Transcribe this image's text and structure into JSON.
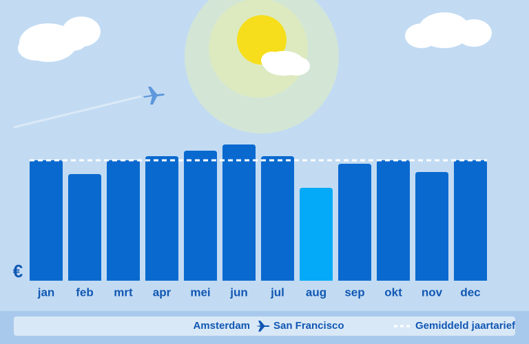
{
  "chart_data": {
    "type": "bar",
    "categories": [
      "jan",
      "feb",
      "mrt",
      "apr",
      "mei",
      "jun",
      "jul",
      "aug",
      "sep",
      "okt",
      "nov",
      "dec"
    ],
    "values": [
      175,
      155,
      175,
      181,
      189,
      198,
      181,
      135,
      170,
      175,
      158,
      175
    ],
    "colors": [
      "#0a69cf",
      "#0a69cf",
      "#0a69cf",
      "#0a69cf",
      "#0a69cf",
      "#0a69cf",
      "#0a69cf",
      "#04aaf7",
      "#0a69cf",
      "#0a69cf",
      "#0a69cf",
      "#0a69cf"
    ],
    "ylim": [
      0,
      200
    ],
    "y_label": "€",
    "average": {
      "label": "Gemiddeld jaartarief",
      "value": 175,
      "color": "#ffffff"
    },
    "route": {
      "origin": "Amsterdam",
      "destination": "San Francisco"
    }
  }
}
